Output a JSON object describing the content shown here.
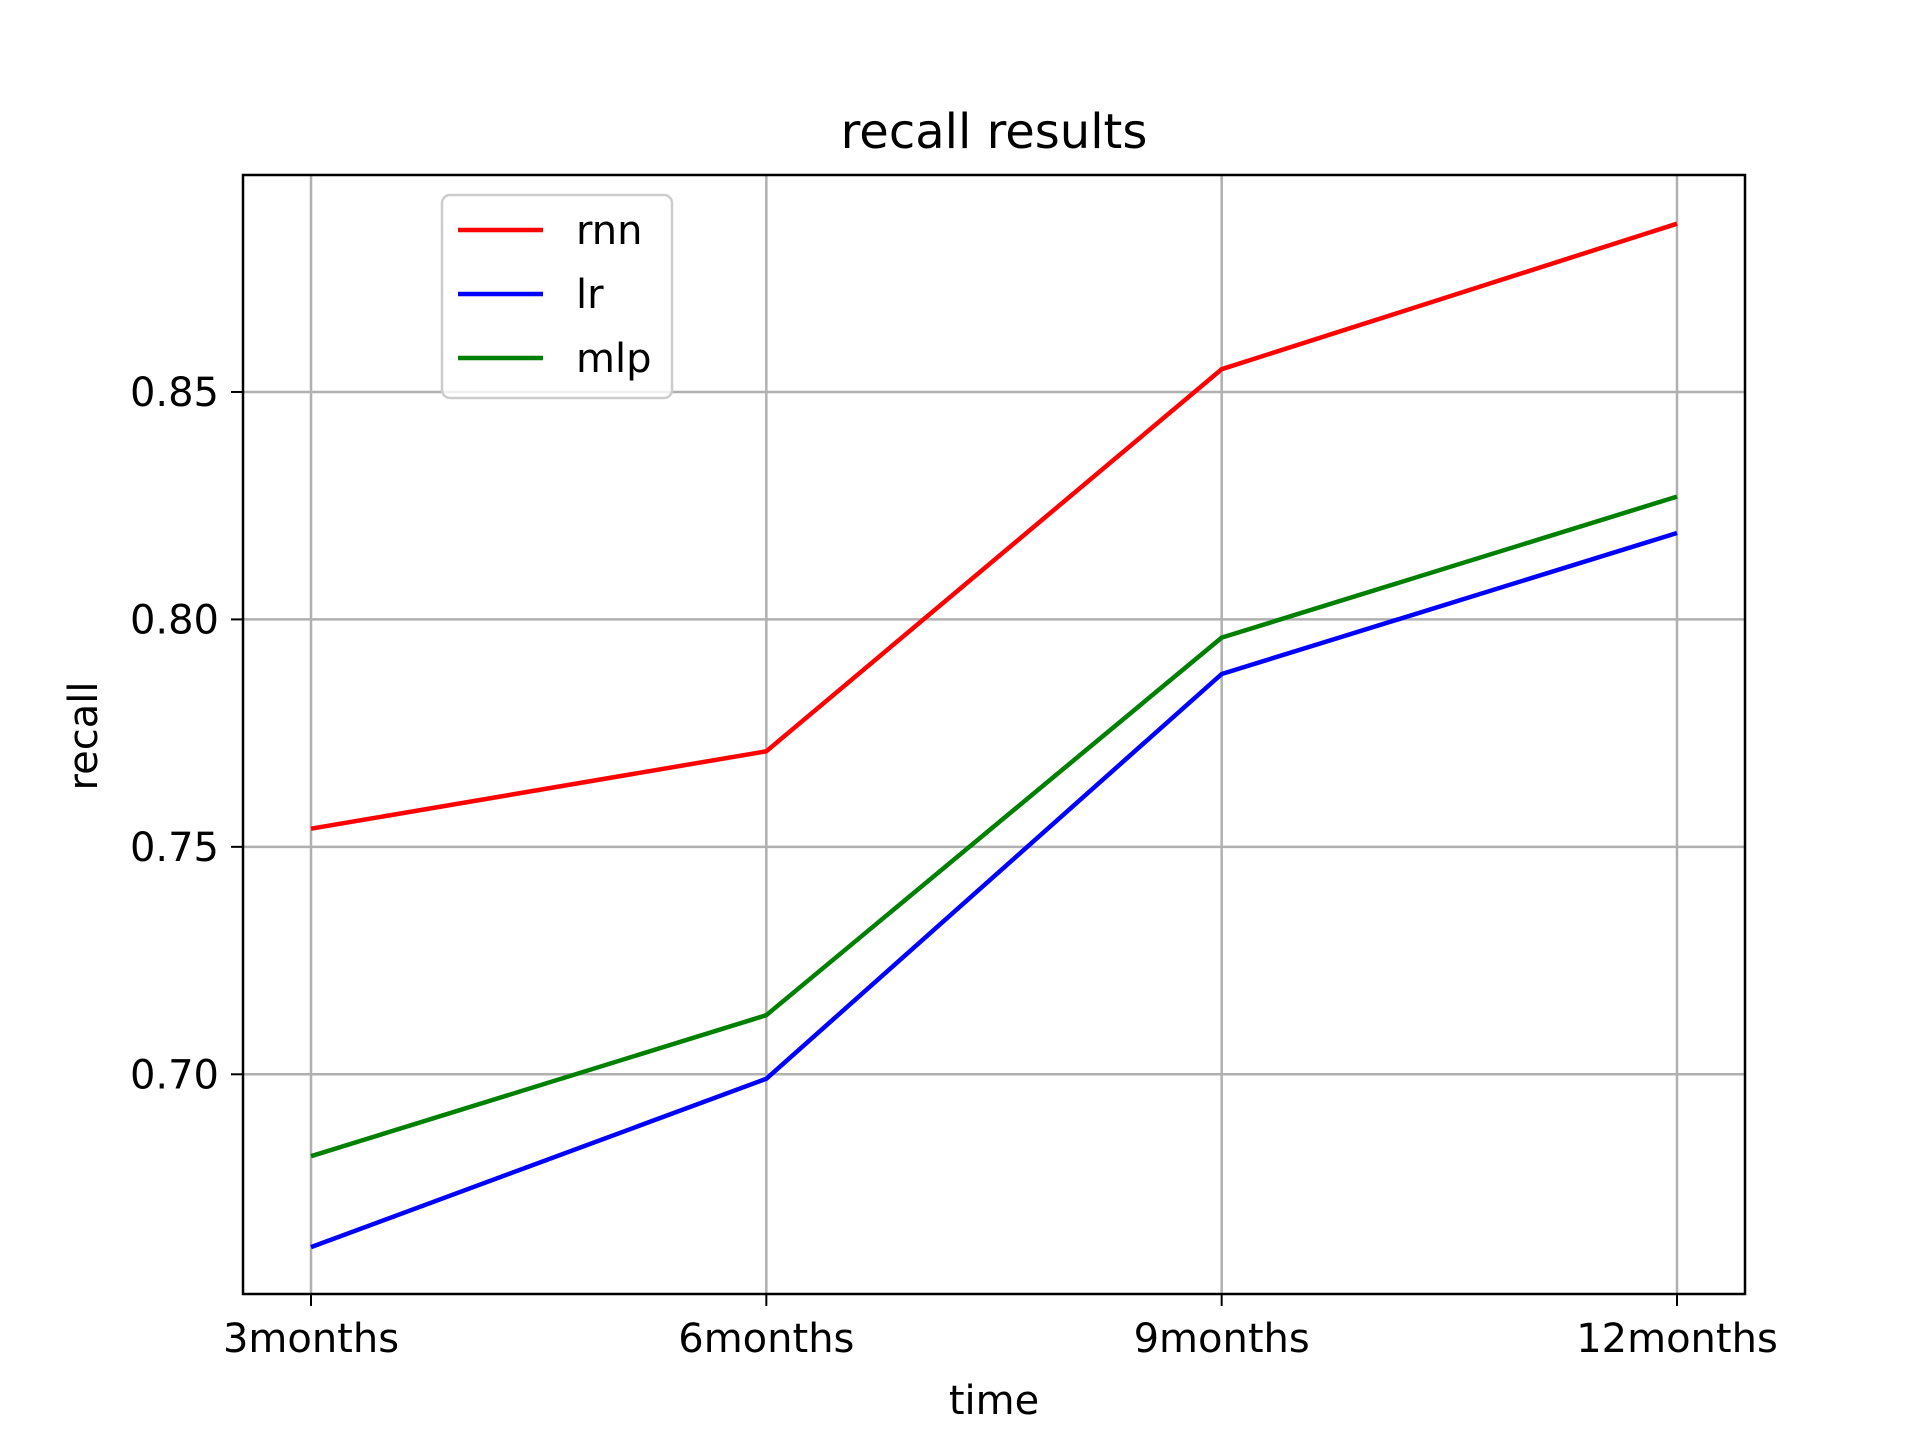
{
  "chart_data": {
    "type": "line",
    "title": "recall results",
    "xlabel": "time",
    "ylabel": "recall",
    "categories": [
      "3months",
      "6months",
      "9months",
      "12months"
    ],
    "yticks": [
      0.7,
      0.75,
      0.8,
      0.85
    ],
    "ytick_labels": [
      "0.70",
      "0.75",
      "0.80",
      "0.85"
    ],
    "ylim": [
      0.6517,
      0.8977
    ],
    "grid": true,
    "legend_position": "upper-left",
    "series": [
      {
        "name": "rnn",
        "color": "#ff0000",
        "values": [
          0.754,
          0.771,
          0.855,
          0.887
        ]
      },
      {
        "name": "lr",
        "color": "#0000ff",
        "values": [
          0.662,
          0.699,
          0.788,
          0.819
        ]
      },
      {
        "name": "mlp",
        "color": "#008000",
        "values": [
          0.682,
          0.713,
          0.796,
          0.827
        ]
      }
    ]
  }
}
